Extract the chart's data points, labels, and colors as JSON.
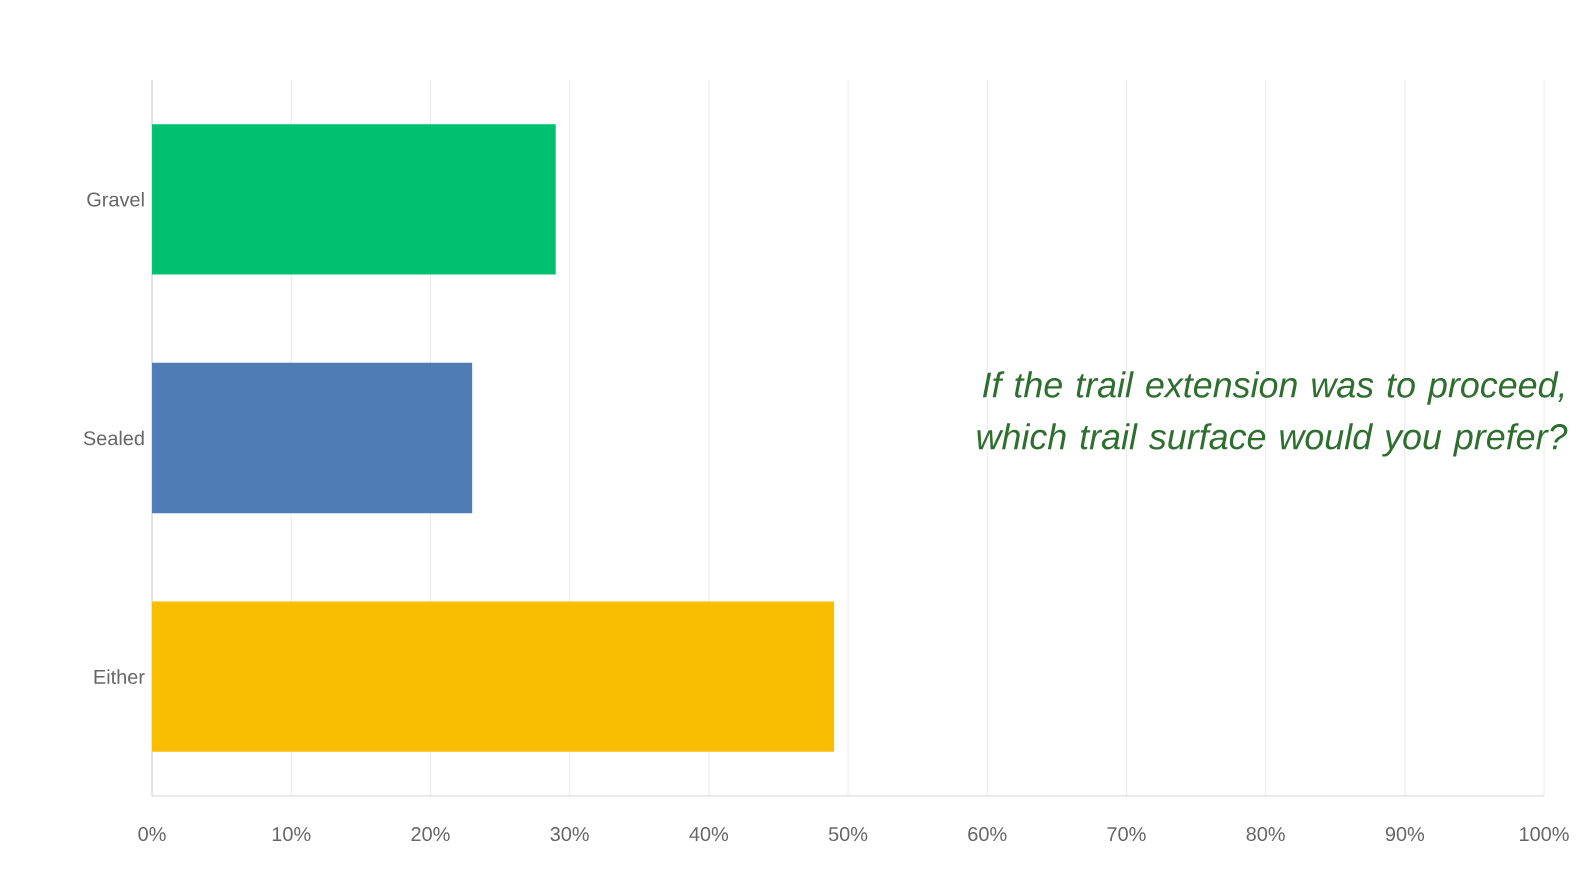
{
  "chart_data": {
    "type": "bar",
    "orientation": "horizontal",
    "categories": [
      "Gravel",
      "Sealed",
      "Either"
    ],
    "values": [
      29,
      23,
      49
    ],
    "colors": [
      "#00bf6f",
      "#507cb6",
      "#f9be00"
    ],
    "xlim": [
      0,
      100
    ],
    "xticks": [
      {
        "value": 0,
        "label": "0%"
      },
      {
        "value": 10,
        "label": "10%"
      },
      {
        "value": 20,
        "label": "20%"
      },
      {
        "value": 30,
        "label": "30%"
      },
      {
        "value": 40,
        "label": "40%"
      },
      {
        "value": 50,
        "label": "50%"
      },
      {
        "value": 60,
        "label": "60%"
      },
      {
        "value": 70,
        "label": "70%"
      },
      {
        "value": 80,
        "label": "80%"
      },
      {
        "value": 90,
        "label": "90%"
      },
      {
        "value": 100,
        "label": "100%"
      }
    ],
    "grid": "x",
    "annotations": [
      "If the trail extension was to proceed, which trail surface would you prefer?"
    ]
  }
}
